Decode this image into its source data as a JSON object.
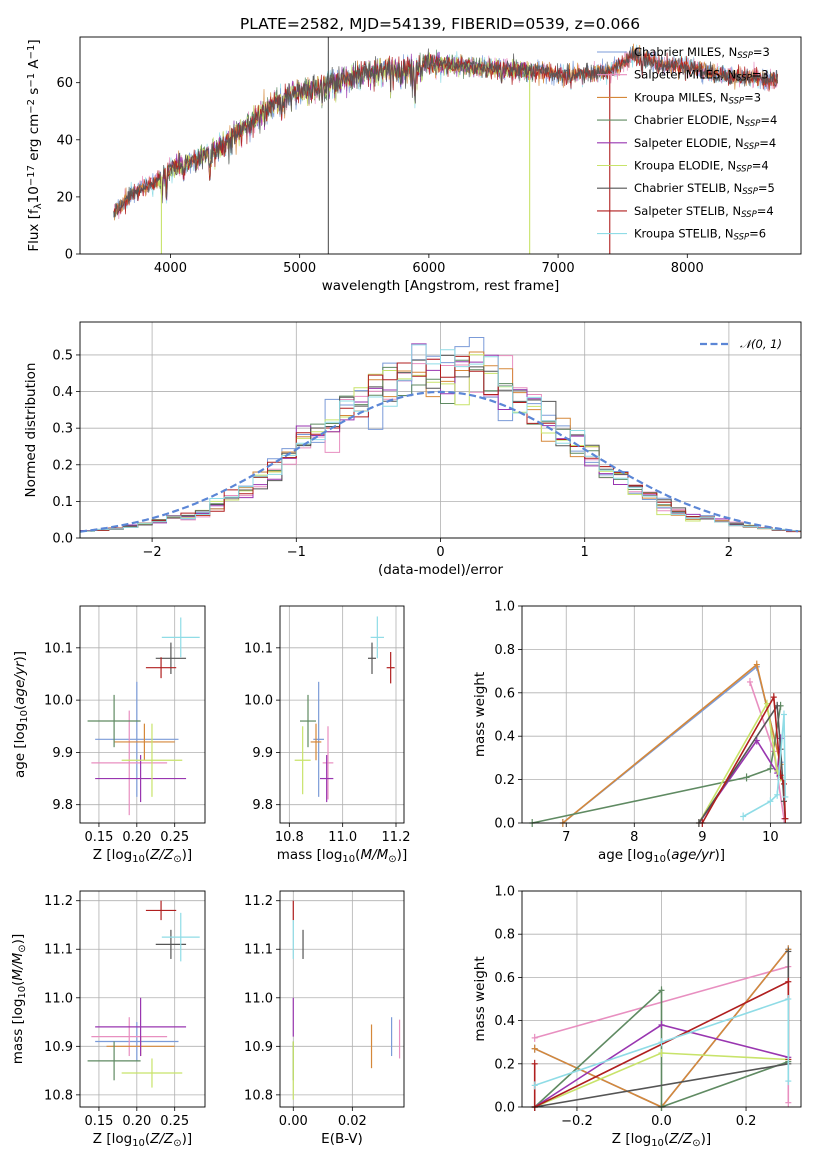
{
  "figure_title": "PLATE=2582, MJD=54139, FIBERID=0539, z=0.066",
  "colors": {
    "Chabrier MILES": "#7b9bd8",
    "Salpeter MILES": "#e88fc0",
    "Kroupa MILES": "#d5883a",
    "Chabrier ELODIE": "#5f8a62",
    "Salpeter ELODIE": "#9936b0",
    "Kroupa ELODIE": "#c8e36a",
    "Chabrier STELIB": "#555555",
    "Salpeter STELIB": "#b01f1f",
    "Kroupa STELIB": "#8fdce6",
    "normal": "#5b86d6",
    "grid": "#b0b0b0"
  },
  "legend_spectrum": [
    {
      "series": "Chabrier MILES",
      "text": "Chabrier MILES, N",
      "sub": "SSP",
      "tail": "=3"
    },
    {
      "series": "Salpeter MILES",
      "text": "Salpeter MILES, N",
      "sub": "SSP",
      "tail": "=3"
    },
    {
      "series": "Kroupa MILES",
      "text": "Kroupa MILES, N",
      "sub": "SSP",
      "tail": "=3"
    },
    {
      "series": "Chabrier ELODIE",
      "text": "Chabrier ELODIE, N",
      "sub": "SSP",
      "tail": "=4"
    },
    {
      "series": "Salpeter ELODIE",
      "text": "Salpeter ELODIE, N",
      "sub": "SSP",
      "tail": "=4"
    },
    {
      "series": "Kroupa ELODIE",
      "text": "Kroupa ELODIE, N",
      "sub": "SSP",
      "tail": "=4"
    },
    {
      "series": "Chabrier STELIB",
      "text": "Chabrier STELIB, N",
      "sub": "SSP",
      "tail": "=5"
    },
    {
      "series": "Salpeter STELIB",
      "text": "Salpeter STELIB, N",
      "sub": "SSP",
      "tail": "=4"
    },
    {
      "series": "Kroupa STELIB",
      "text": "Kroupa STELIB, N",
      "sub": "SSP",
      "tail": "=6"
    }
  ],
  "legend_hist": {
    "text": "𝒩(0, 1)"
  },
  "chart_data": [
    {
      "id": "spectrum",
      "type": "line",
      "xlabel": "wavelength [Angstrom, rest frame]",
      "ylabel": "Flux [f_λ 10^-17 erg cm^-2 s^-1 A^-1]",
      "xlim": [
        3300,
        8880
      ],
      "ylim": [
        0,
        76
      ],
      "xticks": [
        4000,
        5000,
        6000,
        7000,
        8000
      ],
      "yticks": [
        0,
        20,
        40,
        60
      ],
      "grid": false,
      "legend_position": "top-right",
      "continuum_knots": [
        [
          3560,
          14
        ],
        [
          3700,
          21
        ],
        [
          3880,
          25
        ],
        [
          4000,
          30
        ],
        [
          4200,
          33
        ],
        [
          4300,
          36
        ],
        [
          4500,
          44
        ],
        [
          4800,
          55
        ],
        [
          5000,
          59
        ],
        [
          5300,
          63
        ],
        [
          5600,
          66
        ],
        [
          5900,
          67
        ],
        [
          6200,
          66
        ],
        [
          6500,
          65
        ],
        [
          6800,
          64
        ],
        [
          7000,
          63
        ],
        [
          7200,
          63
        ],
        [
          7400,
          64
        ],
        [
          7500,
          67
        ],
        [
          7600,
          70
        ],
        [
          7800,
          66
        ],
        [
          8000,
          66
        ],
        [
          8200,
          63
        ],
        [
          8400,
          62
        ],
        [
          8700,
          61
        ]
      ],
      "absorption_lines": [
        [
          3934,
          8
        ],
        [
          3969,
          8
        ],
        [
          4102,
          5
        ],
        [
          4304,
          8
        ],
        [
          4861,
          6
        ],
        [
          5175,
          6
        ],
        [
          5270,
          3
        ],
        [
          5892,
          12
        ],
        [
          6563,
          4
        ],
        [
          7100,
          3
        ],
        [
          7650,
          5
        ]
      ]
    },
    {
      "id": "residual-histogram",
      "type": "area",
      "xlabel": "(data-model)/error",
      "ylabel": "Normed distribution",
      "xlim": [
        -2.5,
        2.5
      ],
      "ylim": [
        0,
        0.59
      ],
      "xticks": [
        -2,
        -1,
        0,
        1,
        2
      ],
      "yticks": [
        0.0,
        0.1,
        0.2,
        0.3,
        0.4,
        0.5
      ],
      "grid": true,
      "legend_position": "top-right",
      "bin_width": 0.1,
      "bins_from": -2.5,
      "normal_curve": {
        "mean": 0,
        "sigma": 1
      }
    },
    {
      "id": "age-vs-Z",
      "type": "scatter",
      "xlabel": "Z [log10(Z/Z⊙)]",
      "ylabel": "age [log10(age/yr)]",
      "xlim": [
        0.125,
        0.29
      ],
      "ylim": [
        9.765,
        10.18
      ],
      "xticks": [
        0.15,
        0.2,
        0.25
      ],
      "yticks": [
        9.8,
        9.9,
        10.0,
        10.1
      ],
      "grid": true,
      "points": [
        {
          "series": "Chabrier MILES",
          "x": 0.2,
          "y": 9.925,
          "xerr": 0.055,
          "yerr": 0.11
        },
        {
          "series": "Salpeter MILES",
          "x": 0.19,
          "y": 9.88,
          "xerr": 0.05,
          "yerr": 0.1
        },
        {
          "series": "Kroupa MILES",
          "x": 0.21,
          "y": 9.92,
          "xerr": 0.04,
          "yerr": 0.035
        },
        {
          "series": "Chabrier ELODIE",
          "x": 0.17,
          "y": 9.96,
          "xerr": 0.035,
          "yerr": 0.05
        },
        {
          "series": "Salpeter ELODIE",
          "x": 0.205,
          "y": 9.85,
          "xerr": 0.06,
          "yerr": 0.045
        },
        {
          "series": "Kroupa ELODIE",
          "x": 0.22,
          "y": 9.885,
          "xerr": 0.04,
          "yerr": 0.07
        },
        {
          "series": "Chabrier STELIB",
          "x": 0.245,
          "y": 10.08,
          "xerr": 0.02,
          "yerr": 0.03
        },
        {
          "series": "Salpeter STELIB",
          "x": 0.232,
          "y": 10.062,
          "xerr": 0.02,
          "yerr": 0.02
        },
        {
          "series": "Kroupa STELIB",
          "x": 0.258,
          "y": 10.12,
          "xerr": 0.025,
          "yerr": 0.038
        }
      ]
    },
    {
      "id": "age-vs-mass",
      "type": "scatter",
      "xlabel": "mass [log10(M/M⊙)]",
      "ylabel": "",
      "xlim": [
        10.765,
        11.23
      ],
      "ylim": [
        9.765,
        10.18
      ],
      "xticks": [
        10.8,
        11.0,
        11.2
      ],
      "yticks": [
        9.8,
        9.9,
        10.0,
        10.1
      ],
      "grid": true,
      "points": [
        {
          "series": "Chabrier MILES",
          "x": 10.91,
          "y": 9.925,
          "xerr": 0.02,
          "yerr": 0.11
        },
        {
          "series": "Salpeter MILES",
          "x": 10.945,
          "y": 9.88,
          "xerr": 0.02,
          "yerr": 0.07
        },
        {
          "series": "Kroupa MILES",
          "x": 10.9,
          "y": 9.92,
          "xerr": 0.02,
          "yerr": 0.035
        },
        {
          "series": "Chabrier ELODIE",
          "x": 10.87,
          "y": 9.96,
          "xerr": 0.03,
          "yerr": 0.05
        },
        {
          "series": "Salpeter ELODIE",
          "x": 10.94,
          "y": 9.85,
          "xerr": 0.025,
          "yerr": 0.045
        },
        {
          "series": "Kroupa ELODIE",
          "x": 10.85,
          "y": 9.885,
          "xerr": 0.03,
          "yerr": 0.065
        },
        {
          "series": "Chabrier STELIB",
          "x": 11.11,
          "y": 10.08,
          "xerr": 0.015,
          "yerr": 0.03
        },
        {
          "series": "Salpeter STELIB",
          "x": 11.18,
          "y": 10.062,
          "xerr": 0.015,
          "yerr": 0.03
        },
        {
          "series": "Kroupa STELIB",
          "x": 11.13,
          "y": 10.12,
          "xerr": 0.025,
          "yerr": 0.04
        }
      ]
    },
    {
      "id": "mass-weight-vs-age",
      "type": "line",
      "xlabel": "age [log10(age/yr)]",
      "ylabel": "mass weight",
      "xlim": [
        6.35,
        10.45
      ],
      "ylim": [
        0,
        1.0
      ],
      "xticks": [
        7,
        8,
        9,
        10
      ],
      "yticks": [
        0.0,
        0.2,
        0.4,
        0.6,
        0.8,
        1.0
      ],
      "grid": true,
      "series": [
        {
          "name": "Chabrier MILES",
          "points": [
            [
              6.95,
              0.0
            ],
            [
              9.8,
              0.72
            ],
            [
              10.15,
              0.28
            ]
          ]
        },
        {
          "name": "Salpeter MILES",
          "points": [
            [
              9.7,
              0.65
            ],
            [
              10.05,
              0.33
            ],
            [
              10.2,
              0.02
            ]
          ]
        },
        {
          "name": "Kroupa MILES",
          "points": [
            [
              6.95,
              0.0
            ],
            [
              9.8,
              0.73
            ],
            [
              10.15,
              0.27
            ]
          ]
        },
        {
          "name": "Chabrier ELODIE",
          "points": [
            [
              6.5,
              0.0
            ],
            [
              9.65,
              0.21
            ],
            [
              10.0,
              0.25
            ],
            [
              10.15,
              0.54
            ]
          ]
        },
        {
          "name": "Salpeter ELODIE",
          "points": [
            [
              8.95,
              0.0
            ],
            [
              9.8,
              0.38
            ],
            [
              10.1,
              0.23
            ],
            [
              10.15,
              0.39
            ]
          ]
        },
        {
          "name": "Kroupa ELODIE",
          "points": [
            [
              8.95,
              0.0
            ],
            [
              9.95,
              0.55
            ],
            [
              10.1,
              0.24
            ],
            [
              10.15,
              0.21
            ]
          ]
        },
        {
          "name": "Chabrier STELIB",
          "points": [
            [
              8.95,
              0.0
            ],
            [
              10.1,
              0.54
            ],
            [
              10.15,
              0.34
            ],
            [
              10.2,
              0.1
            ],
            [
              10.22,
              0.02
            ]
          ]
        },
        {
          "name": "Salpeter STELIB",
          "points": [
            [
              9.0,
              0.0
            ],
            [
              10.05,
              0.58
            ],
            [
              10.15,
              0.22
            ],
            [
              10.2,
              0.18
            ],
            [
              10.22,
              0.02
            ]
          ]
        },
        {
          "name": "Kroupa STELIB",
          "points": [
            [
              9.6,
              0.03
            ],
            [
              10.0,
              0.1
            ],
            [
              10.1,
              0.13
            ],
            [
              10.2,
              0.5
            ],
            [
              10.22,
              0.12
            ]
          ]
        }
      ]
    },
    {
      "id": "mass-vs-Z",
      "type": "scatter",
      "xlabel": "Z [log10(Z/Z⊙)]",
      "ylabel": "mass [log10(M/M⊙)]",
      "xlim": [
        0.125,
        0.29
      ],
      "ylim": [
        10.775,
        11.22
      ],
      "xticks": [
        0.15,
        0.2,
        0.25
      ],
      "yticks": [
        10.8,
        10.9,
        11.0,
        11.1,
        11.2
      ],
      "grid": true,
      "points": [
        {
          "series": "Chabrier MILES",
          "x": 0.2,
          "y": 10.91,
          "xerr": 0.055,
          "yerr": 0.04
        },
        {
          "series": "Salpeter MILES",
          "x": 0.19,
          "y": 10.92,
          "xerr": 0.05,
          "yerr": 0.04
        },
        {
          "series": "Kroupa MILES",
          "x": 0.205,
          "y": 10.9,
          "xerr": 0.045,
          "yerr": 0.02
        },
        {
          "series": "Chabrier ELODIE",
          "x": 0.17,
          "y": 10.87,
          "xerr": 0.035,
          "yerr": 0.04
        },
        {
          "series": "Salpeter ELODIE",
          "x": 0.205,
          "y": 10.94,
          "xerr": 0.06,
          "yerr": 0.06
        },
        {
          "series": "Kroupa ELODIE",
          "x": 0.22,
          "y": 10.845,
          "xerr": 0.04,
          "yerr": 0.03
        },
        {
          "series": "Chabrier STELIB",
          "x": 0.245,
          "y": 11.11,
          "xerr": 0.02,
          "yerr": 0.03
        },
        {
          "series": "Salpeter STELIB",
          "x": 0.232,
          "y": 11.18,
          "xerr": 0.02,
          "yerr": 0.02
        },
        {
          "series": "Kroupa STELIB",
          "x": 0.258,
          "y": 11.125,
          "xerr": 0.025,
          "yerr": 0.05
        }
      ]
    },
    {
      "id": "mass-vs-EBV",
      "type": "scatter",
      "xlabel": "E(B-V)",
      "ylabel": "",
      "xlim": [
        -0.0045,
        0.0375
      ],
      "ylim": [
        10.775,
        11.22
      ],
      "xticks": [
        0.0,
        0.02
      ],
      "yticks": [
        10.8,
        10.9,
        11.0,
        11.1,
        11.2
      ],
      "grid": true,
      "points": [
        {
          "series": "Chabrier MILES",
          "x": 0.0333,
          "y": 10.92,
          "xerr": 0,
          "yerr": 0.04
        },
        {
          "series": "Salpeter MILES",
          "x": 0.036,
          "y": 10.915,
          "xerr": 0,
          "yerr": 0.04
        },
        {
          "series": "Kroupa MILES",
          "x": 0.0265,
          "y": 10.9,
          "xerr": 0,
          "yerr": 0.045
        },
        {
          "series": "Chabrier ELODIE",
          "x": 0.0,
          "y": 10.87,
          "xerr": 0,
          "yerr": 0.04
        },
        {
          "series": "Salpeter ELODIE",
          "x": 0.0,
          "y": 10.96,
          "xerr": 0,
          "yerr": 0.04
        },
        {
          "series": "Kroupa ELODIE",
          "x": 0.0,
          "y": 10.85,
          "xerr": 0,
          "yerr": 0.06
        },
        {
          "series": "Chabrier STELIB",
          "x": 0.0033,
          "y": 11.11,
          "xerr": 0,
          "yerr": 0.03
        },
        {
          "series": "Salpeter STELIB",
          "x": 0.0,
          "y": 11.18,
          "xerr": 0,
          "yerr": 0.02
        },
        {
          "series": "Kroupa STELIB",
          "x": 0.0,
          "y": 11.12,
          "xerr": 0,
          "yerr": 0.04
        }
      ]
    },
    {
      "id": "mass-weight-vs-Z",
      "type": "line",
      "xlabel": "Z [log10(Z/Z⊙)]",
      "ylabel": "mass weight",
      "xlim": [
        -0.33,
        0.33
      ],
      "ylim": [
        0,
        1.0
      ],
      "xticks": [
        -0.2,
        0.0,
        0.2
      ],
      "yticks": [
        0.0,
        0.2,
        0.4,
        0.6,
        0.8,
        1.0
      ],
      "grid": true,
      "series": [
        {
          "name": "Chabrier MILES",
          "points": [
            [
              -0.3,
              0.27
            ],
            [
              0.0,
              0.0
            ],
            [
              0.3,
              0.73
            ]
          ]
        },
        {
          "name": "Salpeter MILES",
          "points": [
            [
              -0.3,
              0.32
            ],
            [
              0.3,
              0.65
            ],
            [
              0.3,
              0.02
            ]
          ]
        },
        {
          "name": "Kroupa MILES",
          "points": [
            [
              -0.3,
              0.27
            ],
            [
              0.0,
              0.0
            ],
            [
              0.3,
              0.73
            ]
          ]
        },
        {
          "name": "Chabrier ELODIE",
          "points": [
            [
              -0.3,
              0.0
            ],
            [
              0.0,
              0.54
            ],
            [
              0.0,
              0.0
            ],
            [
              0.3,
              0.21
            ]
          ]
        },
        {
          "name": "Salpeter ELODIE",
          "points": [
            [
              -0.3,
              0.0
            ],
            [
              0.0,
              0.38
            ],
            [
              0.3,
              0.23
            ]
          ]
        },
        {
          "name": "Kroupa ELODIE",
          "points": [
            [
              -0.3,
              0.0
            ],
            [
              0.0,
              0.25
            ],
            [
              0.3,
              0.22
            ]
          ]
        },
        {
          "name": "Chabrier STELIB",
          "points": [
            [
              -0.3,
              0.0
            ],
            [
              0.3,
              0.2
            ],
            [
              0.3,
              0.72
            ]
          ]
        },
        {
          "name": "Salpeter STELIB",
          "points": [
            [
              -0.3,
              0.2
            ],
            [
              -0.3,
              0.0
            ],
            [
              0.3,
              0.58
            ],
            [
              0.3,
              0.22
            ]
          ]
        },
        {
          "name": "Kroupa STELIB",
          "points": [
            [
              -0.3,
              0.1
            ],
            [
              0.0,
              0.3
            ],
            [
              0.3,
              0.5
            ],
            [
              0.3,
              0.12
            ]
          ]
        }
      ]
    }
  ]
}
